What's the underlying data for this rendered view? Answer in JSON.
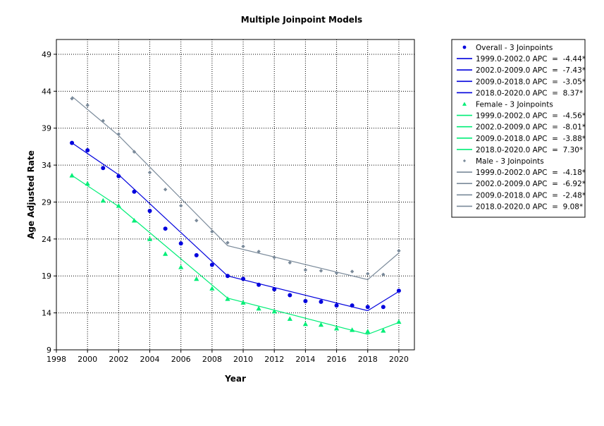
{
  "chart_data": {
    "type": "line",
    "title": "Multiple Joinpoint Models",
    "xlabel": "Year",
    "ylabel": "Age Adjusted Rate",
    "xlim": [
      1998,
      2021
    ],
    "ylim": [
      9,
      51
    ],
    "x_ticks": [
      1998,
      2000,
      2002,
      2004,
      2006,
      2008,
      2010,
      2012,
      2014,
      2016,
      2018,
      2020
    ],
    "y_ticks": [
      9,
      14,
      19,
      24,
      29,
      34,
      39,
      44,
      49
    ],
    "grid": true,
    "legend_position": "right",
    "series": [
      {
        "name": "Overall - 3 Joinpoints",
        "color": "#0000dd",
        "marker": "circle",
        "x": [
          1999,
          2000,
          2001,
          2002,
          2003,
          2004,
          2005,
          2006,
          2007,
          2008,
          2009,
          2010,
          2011,
          2012,
          2013,
          2014,
          2015,
          2016,
          2017,
          2018,
          2019,
          2020
        ],
        "observed": [
          37.0,
          36.0,
          33.6,
          32.5,
          30.4,
          27.8,
          25.4,
          23.4,
          21.8,
          20.5,
          19.0,
          18.6,
          17.8,
          17.2,
          16.4,
          15.6,
          15.5,
          15.0,
          15.0,
          14.8,
          14.8,
          17.0
        ],
        "fitted_x": [
          1999,
          2002,
          2009,
          2018,
          2020
        ],
        "fitted_y": [
          37.0,
          32.7,
          19.0,
          14.3,
          16.9
        ],
        "segments": [
          "1999.0-2002.0 APC  =  -4.44*",
          "2002.0-2009.0 APC  =  -7.43*",
          "2009.0-2018.0 APC  =  -3.05*",
          "2018.0-2020.0 APC  =  8.37*"
        ]
      },
      {
        "name": "Female - 3 Joinpoints",
        "color": "#00ee77",
        "marker": "triangle",
        "x": [
          1999,
          2000,
          2001,
          2002,
          2003,
          2004,
          2005,
          2006,
          2007,
          2008,
          2009,
          2010,
          2011,
          2012,
          2013,
          2014,
          2015,
          2016,
          2017,
          2018,
          2019,
          2020
        ],
        "observed": [
          32.6,
          31.5,
          29.2,
          28.5,
          26.5,
          24.0,
          22.0,
          20.2,
          18.6,
          17.3,
          15.9,
          15.4,
          14.6,
          14.2,
          13.2,
          12.5,
          12.4,
          11.9,
          11.7,
          11.5,
          11.6,
          12.8
        ],
        "fitted_x": [
          1999,
          2002,
          2009,
          2018,
          2020
        ],
        "fitted_y": [
          32.6,
          28.4,
          16.0,
          11.1,
          12.7
        ],
        "segments": [
          "1999.0-2002.0 APC  =  -4.56*",
          "2002.0-2009.0 APC  =  -8.01*",
          "2009.0-2018.0 APC  =  -3.88*",
          "2018.0-2020.0 APC  =  7.30*"
        ]
      },
      {
        "name": "Male - 3 Joinpoints",
        "color": "#7a8a9a",
        "marker": "diamond",
        "x": [
          1999,
          2000,
          2001,
          2002,
          2003,
          2004,
          2005,
          2006,
          2007,
          2008,
          2009,
          2010,
          2011,
          2012,
          2013,
          2014,
          2015,
          2016,
          2017,
          2018,
          2019,
          2020
        ],
        "observed": [
          43.0,
          42.1,
          40.0,
          38.2,
          35.8,
          33.0,
          30.7,
          28.5,
          26.5,
          25.0,
          23.5,
          23.0,
          22.3,
          21.5,
          20.8,
          19.8,
          19.7,
          19.4,
          19.6,
          19.3,
          19.2,
          22.4
        ],
        "fitted_x": [
          1999,
          2002,
          2009,
          2018,
          2020
        ],
        "fitted_y": [
          43.3,
          38.0,
          23.1,
          18.5,
          22.1
        ],
        "segments": [
          "1999.0-2002.0 APC  =  -4.18*",
          "2002.0-2009.0 APC  =  -6.92*",
          "2009.0-2018.0 APC  =  -2.48*",
          "2018.0-2020.0 APC  =  9.08*"
        ]
      }
    ]
  }
}
